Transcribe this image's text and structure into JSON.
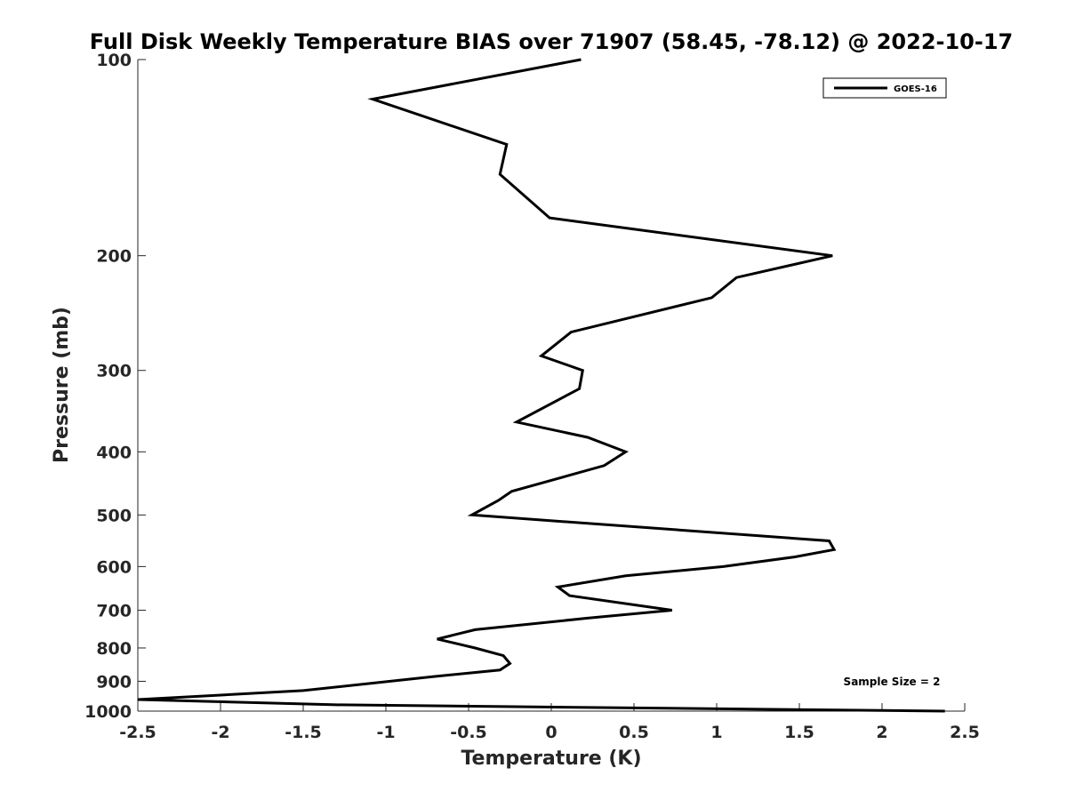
{
  "chart_data": {
    "type": "line",
    "title": "Full Disk Weekly Temperature BIAS over 71907 (58.45, -78.12) @ 2022-10-17",
    "xlabel": "Temperature (K)",
    "ylabel": "Pressure (mb)",
    "xlim": [
      -2.5,
      2.5
    ],
    "ylim": [
      100,
      1000
    ],
    "y_scale": "log",
    "y_reversed": true,
    "grid": false,
    "legend_position": "top-right",
    "x_ticks": [
      -2.5,
      -2,
      -1.5,
      -1,
      -0.5,
      0,
      0.5,
      1,
      1.5,
      2,
      2.5
    ],
    "x_tick_labels": [
      "-2.5",
      "-2",
      "-1.5",
      "-1",
      "-0.5",
      "0",
      "0.5",
      "1",
      "1.5",
      "2",
      "2.5"
    ],
    "y_ticks": [
      100,
      200,
      300,
      400,
      500,
      600,
      700,
      800,
      900,
      1000
    ],
    "y_tick_labels": [
      "100",
      "200",
      "300",
      "400",
      "500",
      "600",
      "700",
      "800",
      "900",
      "1000"
    ],
    "annotation": "Sample Size = 2",
    "series": [
      {
        "name": "GOES-16",
        "color": "#000000",
        "points": [
          {
            "x": 0.18,
            "y": 100
          },
          {
            "x": -1.08,
            "y": 115
          },
          {
            "x": -0.27,
            "y": 135
          },
          {
            "x": -0.31,
            "y": 150
          },
          {
            "x": -0.01,
            "y": 175
          },
          {
            "x": 1.7,
            "y": 200
          },
          {
            "x": 1.12,
            "y": 216
          },
          {
            "x": 0.97,
            "y": 232
          },
          {
            "x": 0.12,
            "y": 262
          },
          {
            "x": -0.06,
            "y": 285
          },
          {
            "x": 0.19,
            "y": 300
          },
          {
            "x": 0.17,
            "y": 320
          },
          {
            "x": -0.21,
            "y": 360
          },
          {
            "x": 0.22,
            "y": 380
          },
          {
            "x": 0.45,
            "y": 400
          },
          {
            "x": 0.32,
            "y": 420
          },
          {
            "x": -0.24,
            "y": 460
          },
          {
            "x": -0.32,
            "y": 475
          },
          {
            "x": -0.48,
            "y": 500
          },
          {
            "x": 1.68,
            "y": 548
          },
          {
            "x": 1.71,
            "y": 565
          },
          {
            "x": 1.47,
            "y": 580
          },
          {
            "x": 1.04,
            "y": 600
          },
          {
            "x": 0.45,
            "y": 620
          },
          {
            "x": 0.04,
            "y": 645
          },
          {
            "x": 0.11,
            "y": 665
          },
          {
            "x": 0.73,
            "y": 700
          },
          {
            "x": 0.22,
            "y": 720
          },
          {
            "x": -0.46,
            "y": 750
          },
          {
            "x": -0.69,
            "y": 775
          },
          {
            "x": -0.46,
            "y": 800
          },
          {
            "x": -0.29,
            "y": 822
          },
          {
            "x": -0.25,
            "y": 845
          },
          {
            "x": -0.31,
            "y": 865
          },
          {
            "x": -0.71,
            "y": 885
          },
          {
            "x": -1.5,
            "y": 930
          },
          {
            "x": -2.5,
            "y": 960
          },
          {
            "x": -1.3,
            "y": 978
          },
          {
            "x": 2.38,
            "y": 1000
          }
        ]
      }
    ]
  }
}
